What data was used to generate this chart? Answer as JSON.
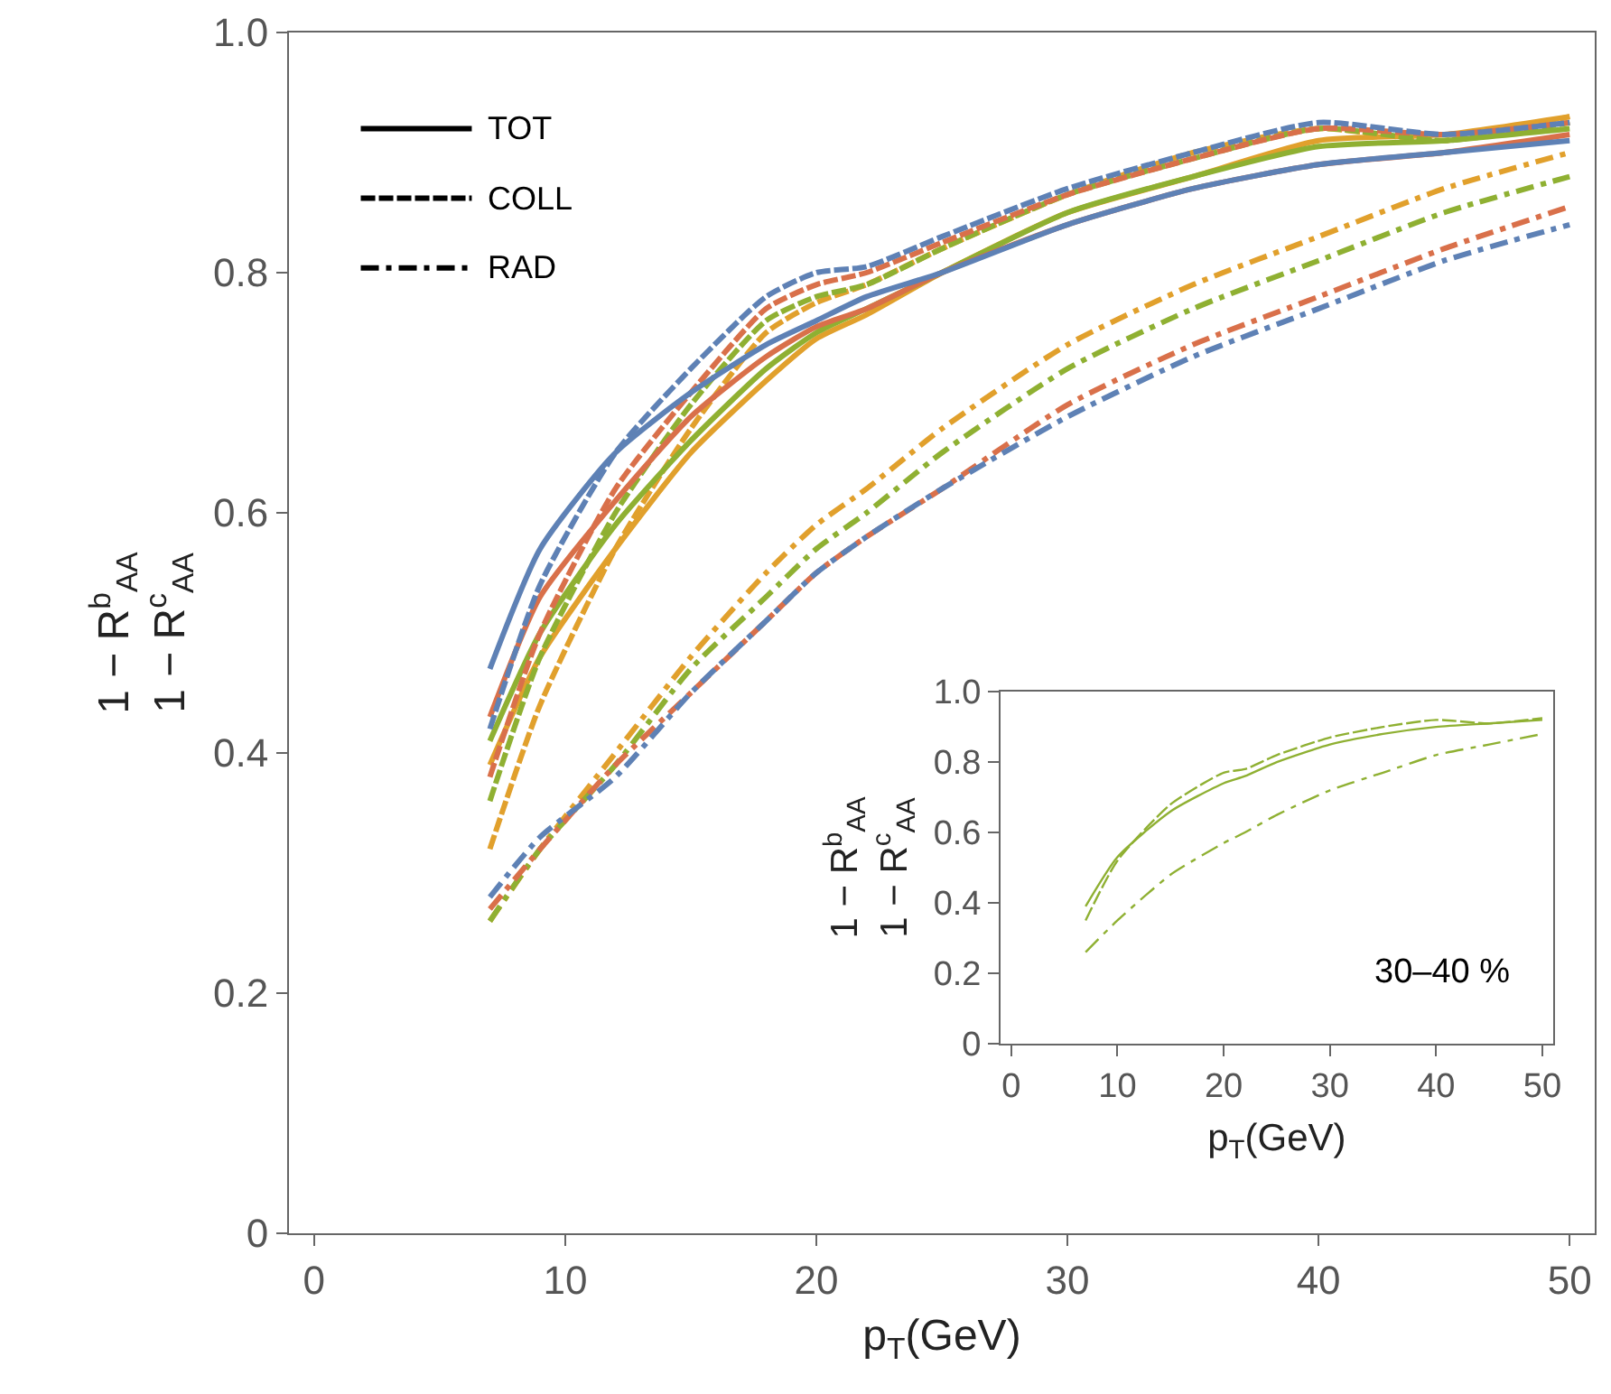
{
  "chart_data": [
    {
      "type": "line",
      "xlabel": "p$_{T}$(GeV)",
      "ylabel": "1 − R$^{b}$$_{AA}$\n1 − R$^{c}$$_{AA}$",
      "xlim": [
        -1,
        51
      ],
      "ylim": [
        0,
        1
      ],
      "xticks": [
        0,
        10,
        20,
        30,
        40,
        50
      ],
      "yticks": [
        0,
        0.2,
        0.4,
        0.6,
        0.8,
        {
          "value": 1.0,
          "label": "1.0"
        }
      ],
      "annotations": [
        "TOT",
        "COLL",
        "RAD"
      ],
      "x": [
        7,
        9,
        12,
        15,
        18,
        20,
        22,
        25,
        30,
        35,
        40,
        45,
        50
      ],
      "series": [
        {
          "color": "#5e81b5",
          "line_style": "solid",
          "values": [
            0.47,
            0.57,
            0.65,
            0.7,
            0.74,
            0.76,
            0.78,
            0.8,
            0.84,
            0.87,
            0.89,
            0.9,
            0.91
          ]
        },
        {
          "color": "#5e81b5",
          "line_style": "dashed",
          "values": [
            0.42,
            0.54,
            0.65,
            0.72,
            0.78,
            0.8,
            0.805,
            0.83,
            0.87,
            0.9,
            0.925,
            0.915,
            0.925
          ]
        },
        {
          "color": "#5e81b5",
          "line_style": "dashdot",
          "values": [
            0.28,
            0.33,
            0.38,
            0.45,
            0.51,
            0.55,
            0.58,
            0.62,
            0.68,
            0.73,
            0.77,
            0.81,
            0.84
          ]
        },
        {
          "color": "#d9704a",
          "line_style": "solid",
          "values": [
            0.43,
            0.53,
            0.61,
            0.68,
            0.73,
            0.755,
            0.77,
            0.8,
            0.84,
            0.87,
            0.89,
            0.9,
            0.915
          ]
        },
        {
          "color": "#d9704a",
          "line_style": "dashed",
          "values": [
            0.38,
            0.5,
            0.62,
            0.7,
            0.77,
            0.79,
            0.8,
            0.825,
            0.865,
            0.895,
            0.92,
            0.915,
            0.925
          ]
        },
        {
          "color": "#d9704a",
          "line_style": "dashdot",
          "values": [
            0.27,
            0.32,
            0.39,
            0.45,
            0.51,
            0.55,
            0.58,
            0.62,
            0.69,
            0.74,
            0.78,
            0.82,
            0.855
          ]
        },
        {
          "color": "#8fb032",
          "line_style": "solid",
          "values": [
            0.41,
            0.5,
            0.59,
            0.66,
            0.72,
            0.75,
            0.77,
            0.8,
            0.85,
            0.88,
            0.905,
            0.91,
            0.92
          ]
        },
        {
          "color": "#8fb032",
          "line_style": "dashed",
          "values": [
            0.36,
            0.48,
            0.6,
            0.69,
            0.76,
            0.78,
            0.79,
            0.82,
            0.865,
            0.895,
            0.92,
            0.91,
            0.925
          ]
        },
        {
          "color": "#8fb032",
          "line_style": "dashdot",
          "values": [
            0.26,
            0.32,
            0.39,
            0.47,
            0.53,
            0.57,
            0.6,
            0.65,
            0.72,
            0.77,
            0.81,
            0.85,
            0.88
          ]
        },
        {
          "color": "#e1a02c",
          "line_style": "solid",
          "values": [
            0.39,
            0.48,
            0.57,
            0.65,
            0.71,
            0.745,
            0.765,
            0.8,
            0.85,
            0.88,
            0.91,
            0.915,
            0.93
          ]
        },
        {
          "color": "#e1a02c",
          "line_style": "dashed",
          "values": [
            0.32,
            0.44,
            0.57,
            0.67,
            0.75,
            0.775,
            0.79,
            0.82,
            0.865,
            0.9,
            0.92,
            0.91,
            0.93
          ]
        },
        {
          "color": "#e1a02c",
          "line_style": "dashdot",
          "values": [
            0.26,
            0.32,
            0.4,
            0.48,
            0.55,
            0.59,
            0.62,
            0.67,
            0.74,
            0.79,
            0.83,
            0.87,
            0.9
          ]
        }
      ]
    },
    {
      "type": "line",
      "xlabel": "p$_{T}$(GeV)",
      "ylabel": "1 − R$^{b}$$_{AA}$\n1 − R$^{c}$$_{AA}$",
      "xlim": [
        -1,
        51
      ],
      "ylim": [
        0,
        1
      ],
      "xticks": [
        0,
        10,
        20,
        30,
        40,
        50
      ],
      "yticks": [
        0,
        0.2,
        0.4,
        0.6,
        0.8,
        {
          "value": 1.0,
          "label": "1.0"
        }
      ],
      "annotations": [
        "30–40 %"
      ],
      "x": [
        7,
        10,
        15,
        20,
        22,
        25,
        30,
        35,
        40,
        45,
        50
      ],
      "series": [
        {
          "color": "#8fb032",
          "line_style": "solid",
          "values": [
            0.39,
            0.53,
            0.66,
            0.74,
            0.76,
            0.8,
            0.85,
            0.88,
            0.9,
            0.91,
            0.92
          ]
        },
        {
          "color": "#8fb032",
          "line_style": "dashed",
          "values": [
            0.35,
            0.52,
            0.68,
            0.77,
            0.78,
            0.82,
            0.87,
            0.9,
            0.92,
            0.91,
            0.925
          ]
        },
        {
          "color": "#8fb032",
          "line_style": "dashdot",
          "values": [
            0.26,
            0.35,
            0.48,
            0.57,
            0.6,
            0.65,
            0.72,
            0.77,
            0.82,
            0.85,
            0.88
          ]
        }
      ]
    }
  ]
}
